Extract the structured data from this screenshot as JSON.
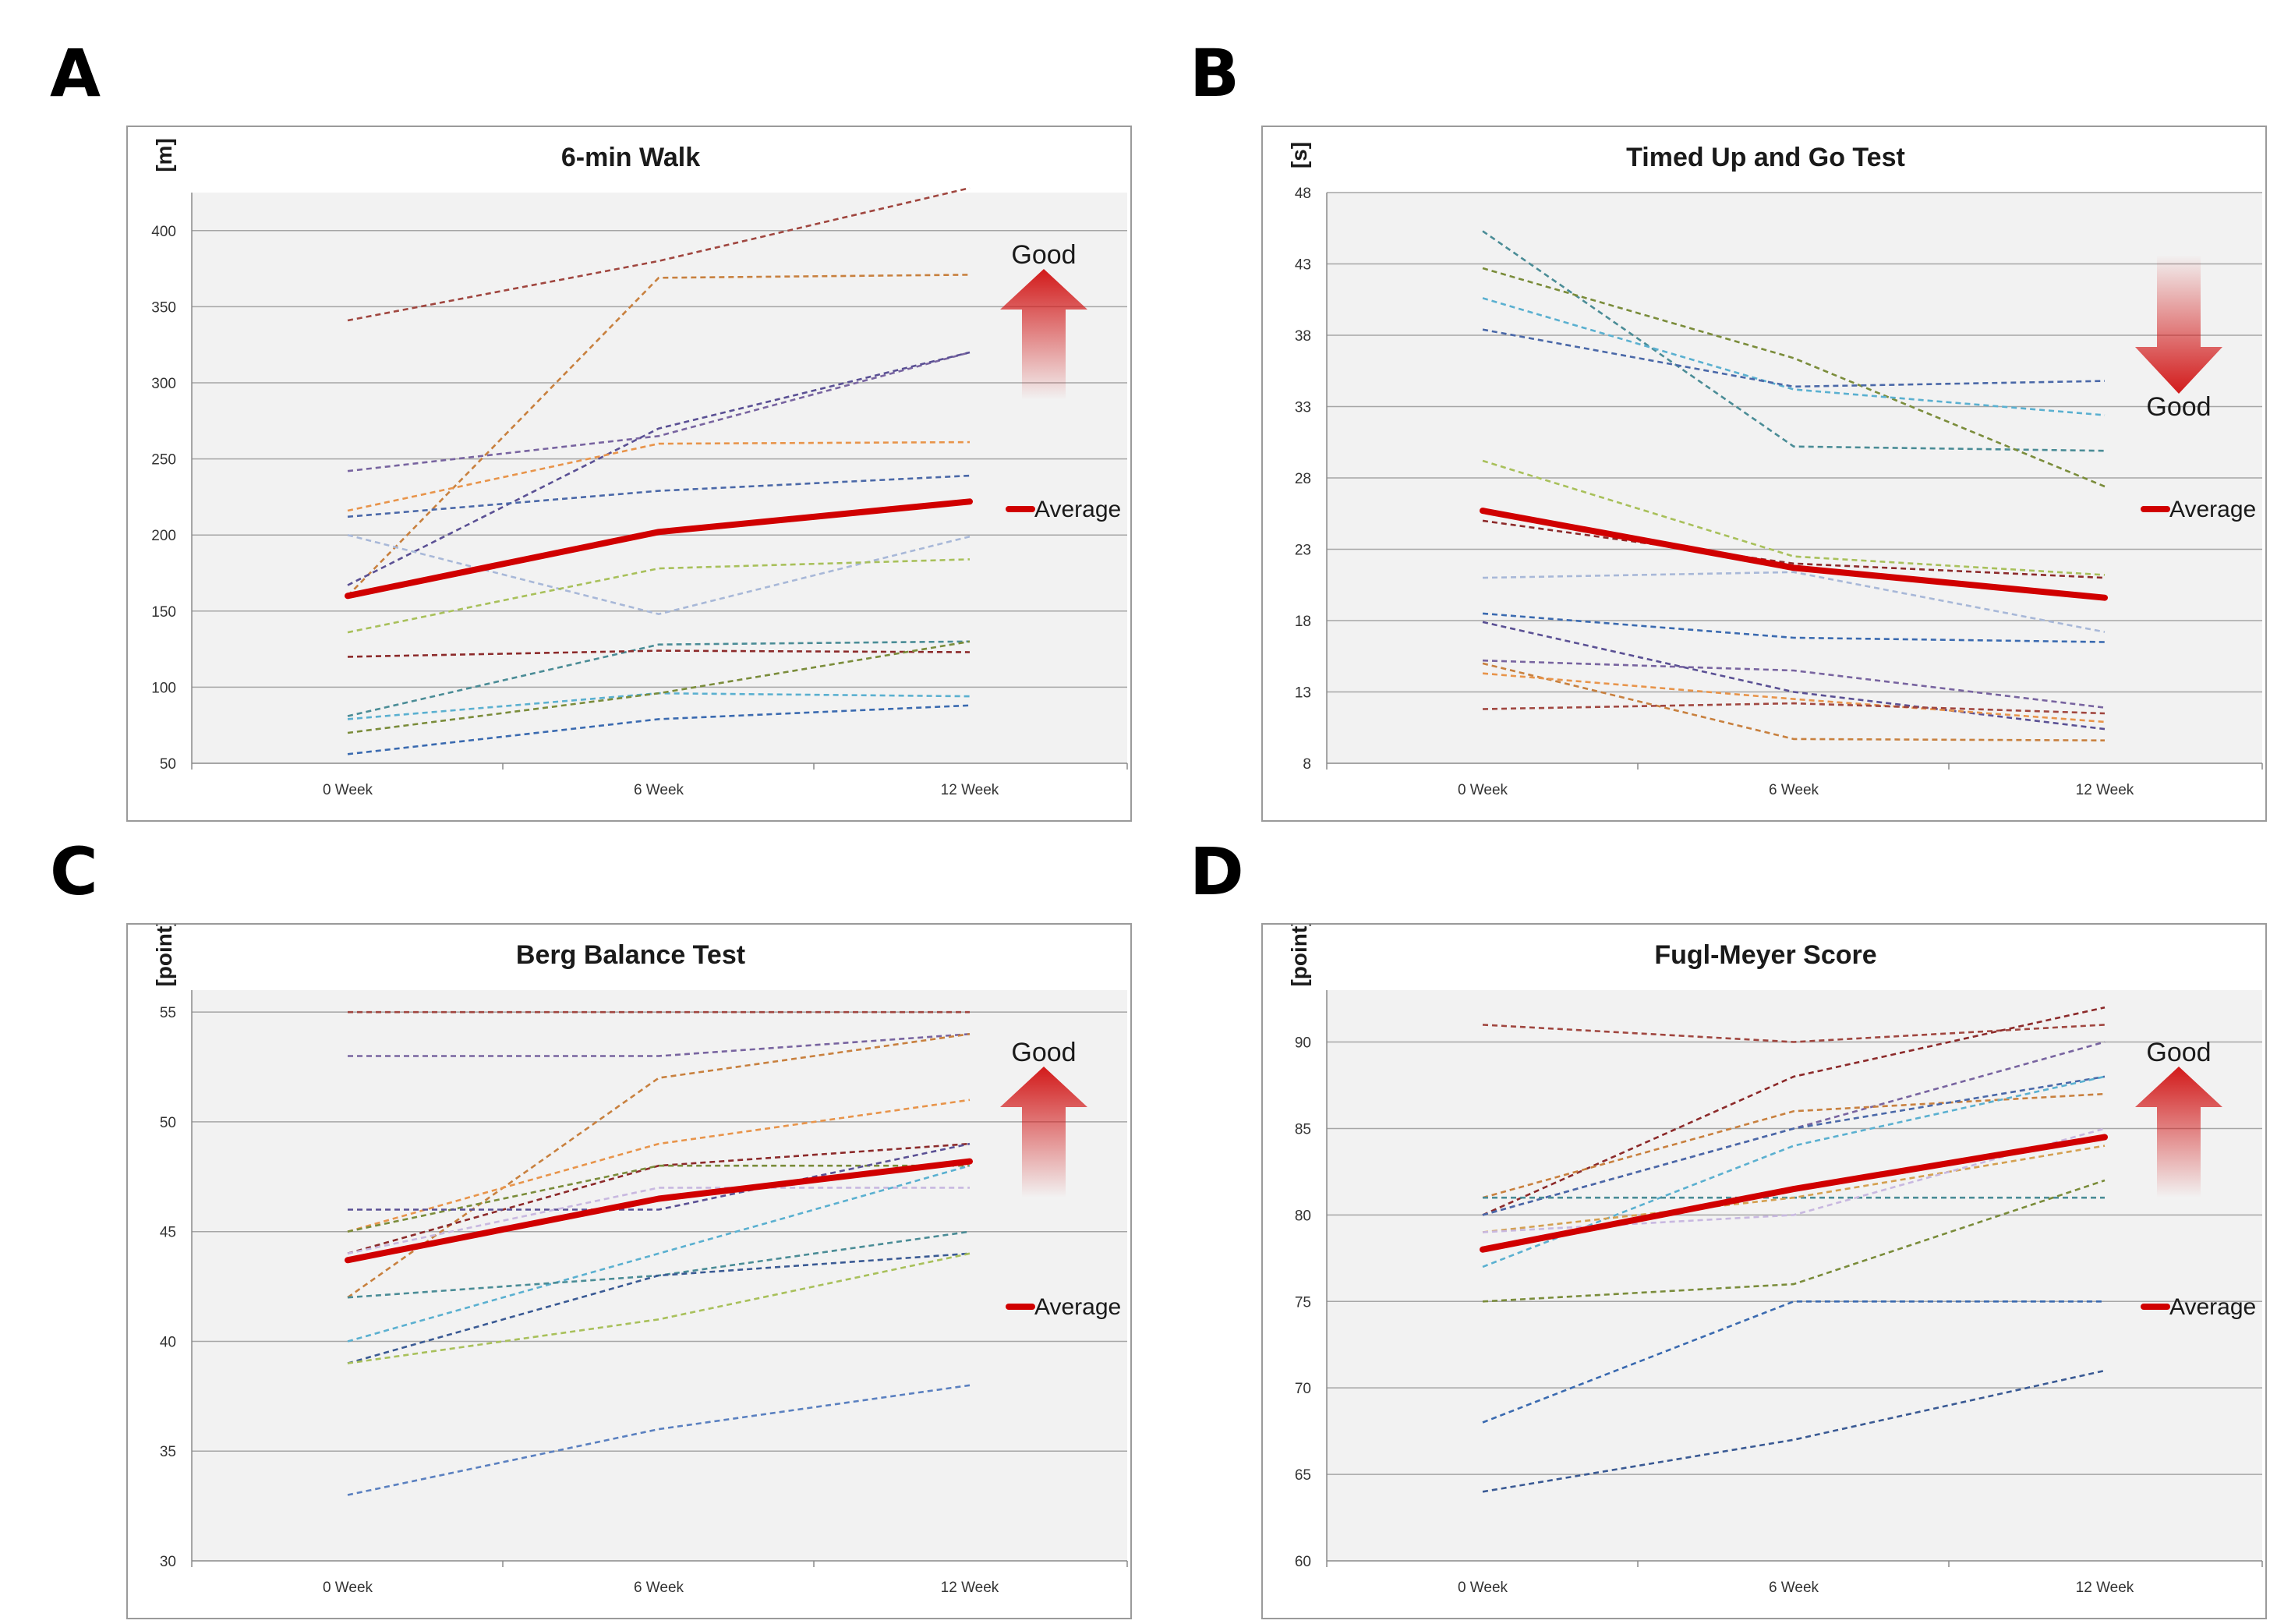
{
  "figure": {
    "panel_labels": [
      "A",
      "B",
      "C",
      "D"
    ],
    "colors": {
      "average": "#d00000",
      "grid": "#a6a6a6",
      "plot_bg": "#f2f2f2",
      "arrow": "#d21a1a"
    }
  },
  "chart_data": [
    {
      "panel": "A",
      "type": "line",
      "title": "6-min Walk",
      "ylabel": "[m]",
      "categories": [
        "0 Week",
        "6 Week",
        "12 Week"
      ],
      "ylim": [
        50,
        425
      ],
      "yticks": [
        50,
        100,
        150,
        200,
        250,
        300,
        350,
        400
      ],
      "grid": true,
      "good_label": "Good",
      "good_direction": "up",
      "legend": "right",
      "average": {
        "name": "Average",
        "values": [
          160,
          202,
          222
        ]
      },
      "series": [
        {
          "color": "#a0463f",
          "values": [
            341,
            380,
            428
          ]
        },
        {
          "color": "#c8803e",
          "values": [
            160,
            369,
            371
          ]
        },
        {
          "color": "#7864a0",
          "values": [
            242,
            265,
            320
          ]
        },
        {
          "color": "#5a5094",
          "values": [
            167,
            270,
            320
          ]
        },
        {
          "color": "#e8944a",
          "values": [
            216,
            260,
            261
          ]
        },
        {
          "color": "#4a68a8",
          "values": [
            212,
            229,
            239
          ]
        },
        {
          "color": "#a8b8d8",
          "values": [
            200,
            148,
            199
          ]
        },
        {
          "color": "#a8c05a",
          "values": [
            136,
            178,
            184
          ]
        },
        {
          "color": "#4a8c96",
          "values": [
            81,
            128,
            130
          ]
        },
        {
          "color": "#8c2a2a",
          "values": [
            120,
            124,
            123
          ]
        },
        {
          "color": "#5ab0d0",
          "values": [
            79,
            96,
            94
          ]
        },
        {
          "color": "#7a8c3a",
          "values": [
            70,
            96,
            130
          ]
        },
        {
          "color": "#3a6ab0",
          "values": [
            56,
            79,
            88
          ]
        }
      ]
    },
    {
      "panel": "B",
      "type": "line",
      "title": "Timed Up and Go Test",
      "ylabel": "[s]",
      "categories": [
        "0 Week",
        "6 Week",
        "12 Week"
      ],
      "ylim": [
        8,
        48
      ],
      "yticks": [
        8,
        13,
        18,
        23,
        28,
        33,
        38,
        43,
        48
      ],
      "grid": true,
      "good_label": "Good",
      "good_direction": "down",
      "legend": "right",
      "average": {
        "name": "Average",
        "values": [
          25.7,
          21.7,
          19.6
        ]
      },
      "series": [
        {
          "color": "#4a8c96",
          "values": [
            45.3,
            30.2,
            29.9
          ]
        },
        {
          "color": "#7a8c3a",
          "values": [
            42.7,
            36.4,
            27.4
          ]
        },
        {
          "color": "#5ab0d0",
          "values": [
            40.6,
            34.2,
            32.4
          ]
        },
        {
          "color": "#4a68a8",
          "values": [
            38.4,
            34.4,
            34.8
          ]
        },
        {
          "color": "#a8c05a",
          "values": [
            29.2,
            22.5,
            21.2
          ]
        },
        {
          "color": "#8c2a2a",
          "values": [
            25.0,
            22.0,
            21.0
          ]
        },
        {
          "color": "#a8b8d8",
          "values": [
            21.0,
            21.4,
            17.2
          ]
        },
        {
          "color": "#3a6ab0",
          "values": [
            18.5,
            16.8,
            16.5
          ]
        },
        {
          "color": "#5a5094",
          "values": [
            17.9,
            13.0,
            10.4
          ]
        },
        {
          "color": "#7864a0",
          "values": [
            15.2,
            14.5,
            11.9
          ]
        },
        {
          "color": "#c8803e",
          "values": [
            15.0,
            9.7,
            9.6
          ]
        },
        {
          "color": "#e8944a",
          "values": [
            14.3,
            12.5,
            10.9
          ]
        },
        {
          "color": "#a0463f",
          "values": [
            11.8,
            12.2,
            11.5
          ]
        }
      ]
    },
    {
      "panel": "C",
      "type": "line",
      "title": "Berg Balance Test",
      "ylabel": "[point]",
      "categories": [
        "0 Week",
        "6 Week",
        "12 Week"
      ],
      "ylim": [
        30,
        56
      ],
      "yticks": [
        30,
        35,
        40,
        45,
        50,
        55
      ],
      "grid": true,
      "good_label": "Good",
      "good_direction": "up",
      "legend": "right",
      "average": {
        "name": "Average",
        "values": [
          43.7,
          46.5,
          48.2
        ]
      },
      "series": [
        {
          "color": "#a0463f",
          "values": [
            55,
            55,
            55
          ]
        },
        {
          "color": "#7864a0",
          "values": [
            53,
            53,
            54
          ]
        },
        {
          "color": "#c8803e",
          "values": [
            42,
            52,
            54
          ]
        },
        {
          "color": "#e8944a",
          "values": [
            45,
            49,
            51
          ]
        },
        {
          "color": "#8c2a2a",
          "values": [
            44,
            48,
            49
          ]
        },
        {
          "color": "#7a8c3a",
          "values": [
            45,
            48,
            48
          ]
        },
        {
          "color": "#5a5094",
          "values": [
            46,
            46,
            49
          ]
        },
        {
          "color": "#c8b8e0",
          "values": [
            44,
            47,
            47
          ]
        },
        {
          "color": "#5ab0d0",
          "values": [
            40,
            44,
            48
          ]
        },
        {
          "color": "#4a8c96",
          "values": [
            42,
            43,
            45
          ]
        },
        {
          "color": "#3a5a94",
          "values": [
            39,
            43,
            44
          ]
        },
        {
          "color": "#a8c05a",
          "values": [
            39,
            41,
            44
          ]
        },
        {
          "color": "#5a80c0",
          "values": [
            33,
            36,
            38
          ]
        }
      ]
    },
    {
      "panel": "D",
      "type": "line",
      "title": "Fugl-Meyer Score",
      "ylabel": "[point]",
      "categories": [
        "0 Week",
        "6 Week",
        "12 Week"
      ],
      "ylim": [
        60,
        93
      ],
      "yticks": [
        60,
        65,
        70,
        75,
        80,
        85,
        90
      ],
      "grid": true,
      "good_label": "Good",
      "good_direction": "up",
      "legend": "right",
      "average": {
        "name": "Average",
        "values": [
          78,
          81.5,
          84.5
        ]
      },
      "series": [
        {
          "color": "#a0463f",
          "values": [
            91,
            90,
            91
          ]
        },
        {
          "color": "#8c2a2a",
          "values": [
            80,
            88,
            92
          ]
        },
        {
          "color": "#7864a0",
          "values": [
            80,
            85,
            90
          ]
        },
        {
          "color": "#c8803e",
          "values": [
            81,
            86,
            87
          ]
        },
        {
          "color": "#4a68a8",
          "values": [
            80,
            85,
            88
          ]
        },
        {
          "color": "#5ab0d0",
          "values": [
            77,
            84,
            88
          ]
        },
        {
          "color": "#4a8c96",
          "values": [
            81,
            81,
            81
          ]
        },
        {
          "color": "#d4a050",
          "values": [
            79,
            81,
            84
          ]
        },
        {
          "color": "#c8b8e0",
          "values": [
            79,
            80,
            85
          ]
        },
        {
          "color": "#7a8c3a",
          "values": [
            75,
            76,
            82
          ]
        },
        {
          "color": "#3a6ab0",
          "values": [
            68,
            75,
            75
          ]
        },
        {
          "color": "#3a5a94",
          "values": [
            64,
            67,
            71
          ]
        }
      ]
    }
  ]
}
